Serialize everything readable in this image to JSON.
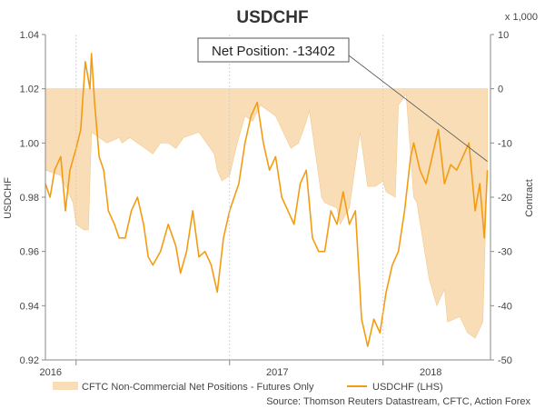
{
  "chart_data": {
    "type": "area",
    "title": "USDCHF",
    "left_axis": {
      "label": "USDCHF",
      "range": [
        0.92,
        1.04
      ],
      "ticks": [
        "0.92",
        "0.94",
        "0.96",
        "0.98",
        "1.00",
        "1.02",
        "1.04"
      ]
    },
    "right_axis": {
      "label": "Contract",
      "unit": "x 1,000",
      "range": [
        -50,
        10
      ],
      "ticks": [
        "-50",
        "-40",
        "-30",
        "-20",
        "-10",
        "0",
        "10"
      ]
    },
    "x_axis": {
      "range": [
        2015.8,
        2018.7
      ],
      "ticks": [
        "2016",
        "2017",
        "2018"
      ],
      "tick_values": [
        2016,
        2017,
        2018
      ]
    },
    "grid": false,
    "legend_position": "bottom",
    "colors": {
      "net_fill": "#f9ddb6",
      "price_line": "#f39c12",
      "axis": "#888888"
    },
    "callout": {
      "text": "Net Position: -13402",
      "points_to": [
        2018.68,
        -13.4
      ]
    },
    "source": "Source: Thomson Reuters Datastream, CFTC, Action Forex",
    "series": [
      {
        "name": "CFTC Non-Commercial Net Positions - Futures Only",
        "axis": "right",
        "style": "area",
        "x": [
          2015.8,
          2015.9,
          2015.98,
          2016.0,
          2016.05,
          2016.08,
          2016.1,
          2016.2,
          2016.28,
          2016.3,
          2016.35,
          2016.45,
          2016.5,
          2016.55,
          2016.6,
          2016.65,
          2016.7,
          2016.8,
          2016.9,
          2016.92,
          2016.95,
          2017.0,
          2017.05,
          2017.1,
          2017.15,
          2017.2,
          2017.3,
          2017.4,
          2017.45,
          2017.5,
          2017.52,
          2017.6,
          2017.62,
          2017.7,
          2017.72,
          2017.78,
          2017.85,
          2017.9,
          2017.95,
          2018.0,
          2018.02,
          2018.08,
          2018.1,
          2018.15,
          2018.2,
          2018.22,
          2018.3,
          2018.35,
          2018.4,
          2018.42,
          2018.5,
          2018.55,
          2018.6,
          2018.65,
          2018.68
        ],
        "y": [
          -15,
          -16,
          -21,
          -25,
          -26,
          -26,
          -8,
          -10,
          -9,
          -10,
          -9,
          -11,
          -12,
          -10,
          -10,
          -11,
          -9,
          -8,
          -12,
          -15,
          -17,
          -16,
          -10,
          -5,
          -6,
          -3,
          -5,
          -11,
          -10,
          -6,
          -4,
          -20,
          -21,
          -22,
          -25,
          -22,
          -8,
          -18,
          -18,
          -17,
          -19,
          -20,
          -3,
          -1,
          -20,
          -21,
          -35,
          -40,
          -37,
          -43,
          -42,
          -45,
          -46,
          -43,
          -13.4
        ]
      },
      {
        "name": "USDCHF (LHS)",
        "axis": "left",
        "style": "line",
        "x": [
          2015.8,
          2015.83,
          2015.86,
          2015.9,
          2015.93,
          2015.96,
          2016.0,
          2016.03,
          2016.06,
          2016.09,
          2016.1,
          2016.12,
          2016.15,
          2016.18,
          2016.21,
          2016.25,
          2016.28,
          2016.32,
          2016.36,
          2016.4,
          2016.44,
          2016.47,
          2016.5,
          2016.55,
          2016.6,
          2016.65,
          2016.68,
          2016.72,
          2016.76,
          2016.8,
          2016.84,
          2016.88,
          2016.92,
          2016.96,
          2017.0,
          2017.03,
          2017.06,
          2017.1,
          2017.14,
          2017.18,
          2017.22,
          2017.26,
          2017.3,
          2017.34,
          2017.38,
          2017.42,
          2017.46,
          2017.5,
          2017.54,
          2017.58,
          2017.62,
          2017.66,
          2017.7,
          2017.74,
          2017.78,
          2017.82,
          2017.86,
          2017.9,
          2017.94,
          2017.98,
          2018.02,
          2018.06,
          2018.1,
          2018.14,
          2018.18,
          2018.2,
          2018.24,
          2018.28,
          2018.32,
          2018.36,
          2018.4,
          2018.44,
          2018.48,
          2018.52,
          2018.56,
          2018.6,
          2018.63,
          2018.66,
          2018.68
        ],
        "y": [
          0.985,
          0.98,
          0.99,
          0.995,
          0.975,
          0.99,
          0.998,
          1.005,
          1.03,
          1.02,
          1.033,
          1.015,
          0.995,
          0.99,
          0.975,
          0.97,
          0.965,
          0.965,
          0.975,
          0.98,
          0.97,
          0.958,
          0.955,
          0.96,
          0.97,
          0.962,
          0.952,
          0.96,
          0.975,
          0.958,
          0.96,
          0.955,
          0.945,
          0.965,
          0.975,
          0.98,
          0.985,
          1.0,
          1.01,
          1.015,
          1.0,
          0.99,
          0.995,
          0.98,
          0.975,
          0.97,
          0.985,
          0.99,
          0.965,
          0.96,
          0.96,
          0.975,
          0.97,
          0.982,
          0.97,
          0.975,
          0.935,
          0.925,
          0.935,
          0.93,
          0.945,
          0.955,
          0.96,
          0.975,
          0.995,
          1.0,
          0.99,
          0.985,
          0.995,
          1.005,
          0.985,
          0.992,
          0.99,
          0.995,
          1.0,
          0.975,
          0.985,
          0.965,
          0.99
        ]
      }
    ]
  }
}
